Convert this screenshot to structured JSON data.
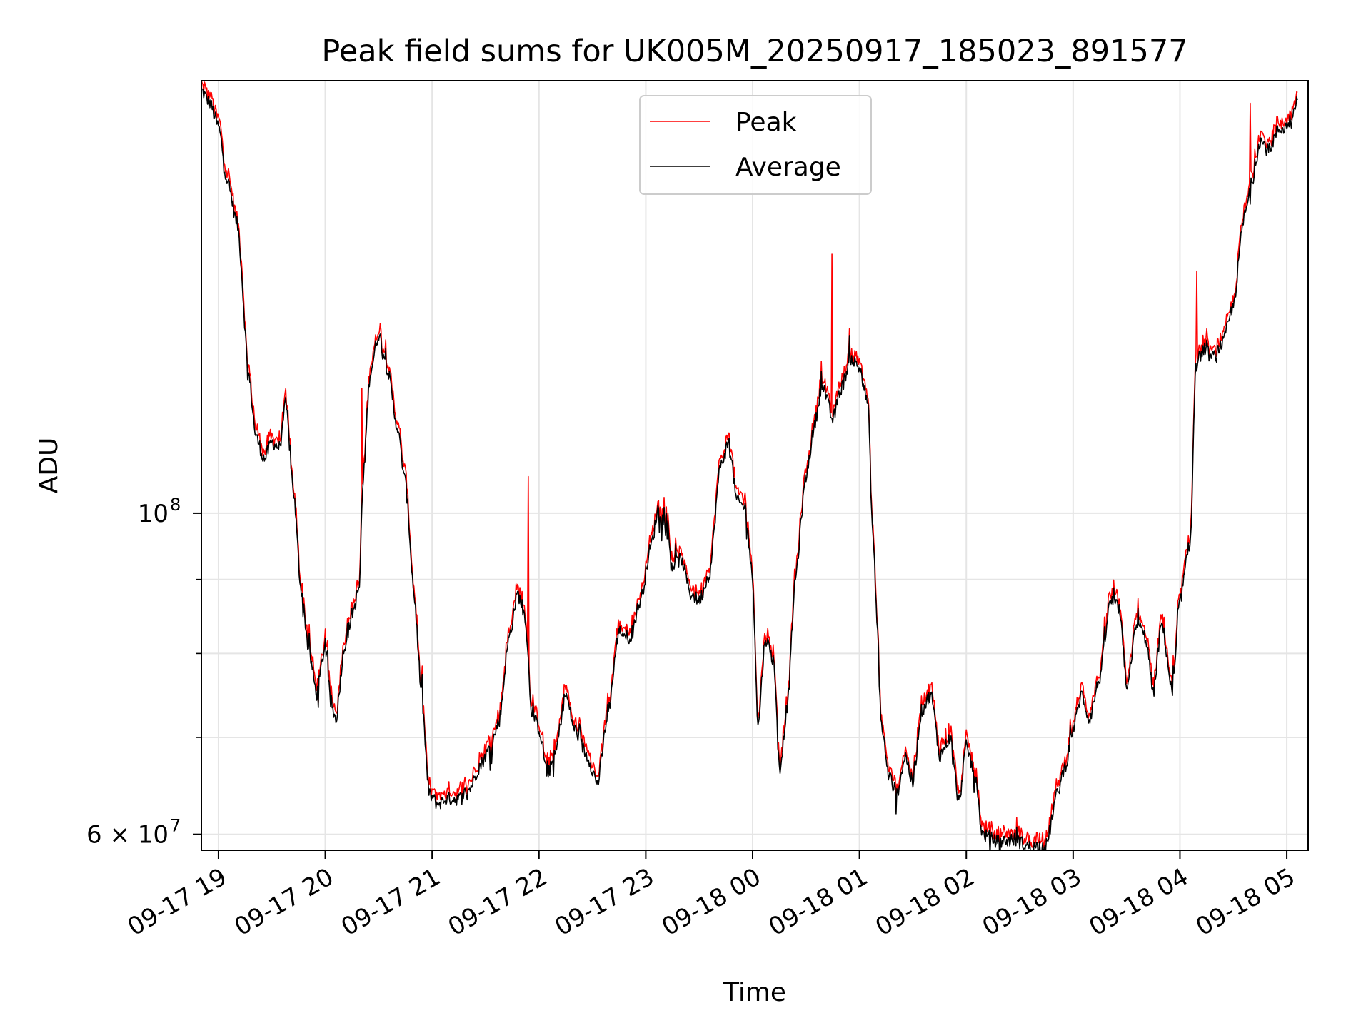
{
  "chart_data": {
    "type": "line",
    "title": "Peak field sums for UK005M_20250917_185023_891577",
    "xlabel": "Time",
    "ylabel": "ADU",
    "yscale": "log",
    "ylim": [
      58500000,
      199000000
    ],
    "xlim": [
      "2025-09-17 18:50",
      "2025-09-18 05:12"
    ],
    "grid": true,
    "legend_position": "upper center",
    "x_tick_labels": [
      "09-17 19",
      "09-17 20",
      "09-17 21",
      "09-17 22",
      "09-17 23",
      "09-18 00",
      "09-18 01",
      "09-18 02",
      "09-18 03",
      "09-18 04",
      "09-18 05"
    ],
    "x_tick_hours": [
      19,
      20,
      21,
      22,
      23,
      24,
      25,
      26,
      27,
      28,
      29
    ],
    "y_major_ticks": [
      {
        "value": 100000000,
        "label": "10"
      },
      {
        "value": 60000000,
        "label": "6 × 10"
      }
    ],
    "y_tick_exponent": "8",
    "y_tick_exponent_2": "7",
    "y_minor_ticks": [
      70000000,
      80000000,
      90000000
    ],
    "series": [
      {
        "name": "Peak",
        "color": "#ff0000"
      },
      {
        "name": "Average",
        "color": "#000000"
      }
    ],
    "average_points": [
      [
        18.84,
        196
      ],
      [
        18.92,
        192
      ],
      [
        19.0,
        185
      ],
      [
        19.08,
        170
      ],
      [
        19.18,
        158
      ],
      [
        19.28,
        125
      ],
      [
        19.35,
        113
      ],
      [
        19.43,
        109
      ],
      [
        19.5,
        112
      ],
      [
        19.57,
        111
      ],
      [
        19.63,
        119
      ],
      [
        19.7,
        104
      ],
      [
        19.77,
        89
      ],
      [
        19.85,
        80
      ],
      [
        19.92,
        75
      ],
      [
        20.0,
        81
      ],
      [
        20.05,
        74
      ],
      [
        20.1,
        72
      ],
      [
        20.18,
        81
      ],
      [
        20.27,
        86
      ],
      [
        20.32,
        89
      ],
      [
        20.35,
        104
      ],
      [
        20.42,
        125
      ],
      [
        20.5,
        133
      ],
      [
        20.58,
        126
      ],
      [
        20.67,
        115
      ],
      [
        20.75,
        105
      ],
      [
        20.83,
        88
      ],
      [
        20.9,
        75
      ],
      [
        20.97,
        64
      ],
      [
        21.05,
        63
      ],
      [
        21.15,
        63.5
      ],
      [
        21.25,
        63.5
      ],
      [
        21.35,
        64.5
      ],
      [
        21.45,
        67
      ],
      [
        21.55,
        69
      ],
      [
        21.63,
        72
      ],
      [
        21.72,
        82
      ],
      [
        21.8,
        88
      ],
      [
        21.87,
        85
      ],
      [
        21.93,
        73
      ],
      [
        22.0,
        71
      ],
      [
        22.08,
        66
      ],
      [
        22.15,
        68
      ],
      [
        22.25,
        75
      ],
      [
        22.33,
        71
      ],
      [
        22.45,
        68
      ],
      [
        22.55,
        65
      ],
      [
        22.65,
        73
      ],
      [
        22.75,
        83
      ],
      [
        22.85,
        82
      ],
      [
        22.95,
        87
      ],
      [
        23.05,
        95
      ],
      [
        23.12,
        101
      ],
      [
        23.2,
        97
      ],
      [
        23.25,
        92
      ],
      [
        23.33,
        93
      ],
      [
        23.42,
        88
      ],
      [
        23.5,
        87
      ],
      [
        23.6,
        91
      ],
      [
        23.7,
        108
      ],
      [
        23.78,
        112
      ],
      [
        23.85,
        102
      ],
      [
        23.93,
        101
      ],
      [
        24.0,
        90
      ],
      [
        24.05,
        71
      ],
      [
        24.12,
        82
      ],
      [
        24.2,
        79
      ],
      [
        24.25,
        66
      ],
      [
        24.33,
        74
      ],
      [
        24.4,
        90
      ],
      [
        24.5,
        106
      ],
      [
        24.58,
        115
      ],
      [
        24.65,
        123
      ],
      [
        24.75,
        116
      ],
      [
        24.83,
        122
      ],
      [
        24.92,
        128
      ],
      [
        25.0,
        126
      ],
      [
        25.08,
        119
      ],
      [
        25.12,
        98
      ],
      [
        25.17,
        83
      ],
      [
        25.2,
        72
      ],
      [
        25.27,
        66
      ],
      [
        25.35,
        64
      ],
      [
        25.43,
        68
      ],
      [
        25.5,
        65
      ],
      [
        25.58,
        73
      ],
      [
        25.67,
        75
      ],
      [
        25.75,
        68
      ],
      [
        25.85,
        70
      ],
      [
        25.93,
        63
      ],
      [
        26.0,
        69
      ],
      [
        26.08,
        66
      ],
      [
        26.15,
        60
      ],
      [
        26.3,
        59.3
      ],
      [
        26.45,
        59.5
      ],
      [
        26.6,
        58.8
      ],
      [
        26.75,
        59
      ],
      [
        26.85,
        64
      ],
      [
        26.93,
        67
      ],
      [
        27.0,
        71
      ],
      [
        27.08,
        75
      ],
      [
        27.15,
        72
      ],
      [
        27.25,
        77
      ],
      [
        27.35,
        87
      ],
      [
        27.43,
        86
      ],
      [
        27.5,
        76
      ],
      [
        27.6,
        84
      ],
      [
        27.68,
        82
      ],
      [
        27.75,
        75
      ],
      [
        27.83,
        84
      ],
      [
        27.93,
        75
      ],
      [
        28.0,
        87
      ],
      [
        28.1,
        96
      ],
      [
        28.15,
        127
      ],
      [
        28.23,
        130
      ],
      [
        28.3,
        128
      ],
      [
        28.4,
        131
      ],
      [
        28.5,
        139
      ],
      [
        28.6,
        160
      ],
      [
        28.68,
        170
      ],
      [
        28.75,
        181
      ],
      [
        28.83,
        178
      ],
      [
        28.92,
        184
      ],
      [
        29.0,
        185
      ],
      [
        29.1,
        193
      ]
    ],
    "peak_spikes": [
      [
        20.34,
        122
      ],
      [
        21.9,
        106
      ],
      [
        24.74,
        151
      ],
      [
        28.16,
        147
      ],
      [
        28.66,
        192
      ]
    ]
  }
}
